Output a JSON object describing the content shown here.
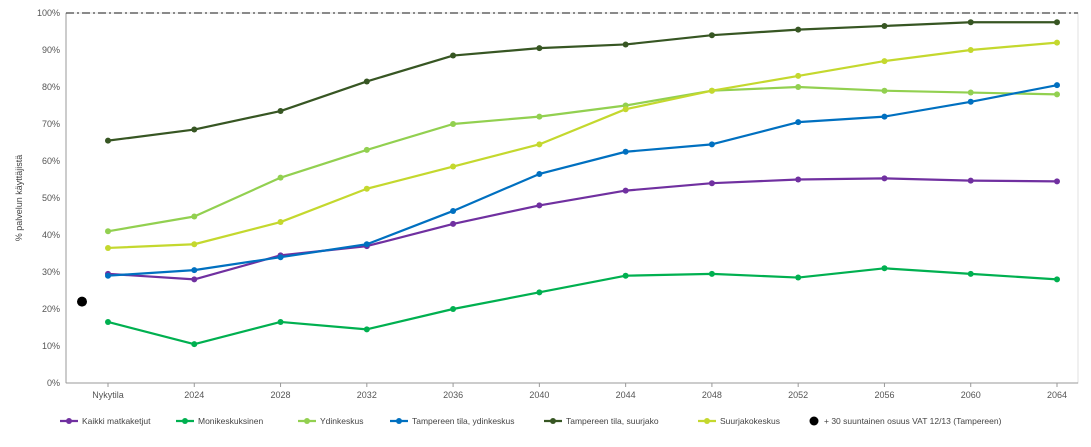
{
  "chart_data": {
    "type": "line",
    "ylabel": "% palvelun käyttäjistä",
    "ylim": [
      0,
      100
    ],
    "yticks": [
      "0%",
      "10%",
      "20%",
      "30%",
      "40%",
      "50%",
      "60%",
      "70%",
      "80%",
      "90%",
      "100%"
    ],
    "categories": [
      "Nykytila",
      "2024",
      "2028",
      "2032",
      "2036",
      "2040",
      "2044",
      "2048",
      "2052",
      "2056",
      "2060",
      "2064"
    ],
    "reference_line": 100,
    "series": [
      {
        "name": "Kaikki matkaketjut",
        "color": "#7030a0",
        "values": [
          29.5,
          28,
          34.5,
          37,
          43,
          48,
          52,
          54,
          55,
          55.3,
          54.7,
          54.5
        ]
      },
      {
        "name": "Monikeskuksinen",
        "color": "#00b050",
        "values": [
          16.5,
          10.5,
          16.5,
          14.5,
          20,
          24.5,
          29,
          29.5,
          28.5,
          31,
          29.5,
          28
        ]
      },
      {
        "name": "Ydinkeskus",
        "color": "#92d050",
        "values": [
          41,
          45,
          55.5,
          63,
          70,
          72,
          75,
          79,
          80,
          79,
          78.5,
          78
        ]
      },
      {
        "name": "Tampereen tila, ydinkeskus",
        "color": "#0070c0",
        "values": [
          29,
          30.5,
          34,
          37.5,
          46.5,
          56.5,
          62.5,
          64.5,
          70.5,
          72,
          76,
          80.5
        ]
      },
      {
        "name": "Tampereen tila, suurjako",
        "color": "#375623",
        "values": [
          65.5,
          68.5,
          73.5,
          81.5,
          88.5,
          90.5,
          91.5,
          94,
          95.5,
          96.5,
          97.5,
          97.5
        ]
      },
      {
        "name": "Suurjakokeskus",
        "color": "#c4d82e",
        "values": [
          36.5,
          37.5,
          43.5,
          52.5,
          58.5,
          64.5,
          74,
          79,
          83,
          87,
          90,
          92
        ]
      }
    ],
    "points": [
      {
        "name": "+ 30 suuntainen osuus VAT 12/13 (Tampereen)",
        "color": "#000000",
        "x": "Nykytila",
        "y": 22
      }
    ],
    "legend_position": "bottom"
  }
}
